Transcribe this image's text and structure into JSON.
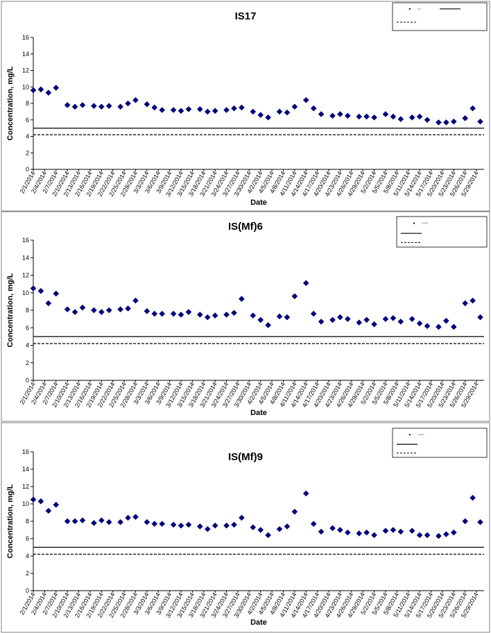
{
  "colors": {
    "marker": "#00007a",
    "line": "#000000",
    "frame": "#808080"
  },
  "chart_data": [
    {
      "type": "scatter",
      "title": "IS17",
      "xlabel": "Date",
      "ylabel": "Concentration, mg/L",
      "ylim": [
        0,
        16
      ],
      "yticks": [
        0,
        2,
        4,
        6,
        8,
        10,
        12,
        14,
        16
      ],
      "grid": false,
      "legend_position": "top-right",
      "x_tick_labels": [
        "2/1/2014",
        "2/4/2014",
        "2/7/2014",
        "2/10/2014",
        "2/13/2014",
        "2/16/2014",
        "2/19/2014",
        "2/22/2014",
        "2/25/2014",
        "2/28/2014",
        "3/3/2014",
        "3/6/2014",
        "3/9/2014",
        "3/12/2014",
        "3/15/2014",
        "3/18/2014",
        "3/21/2014",
        "3/24/2014",
        "3/27/2014",
        "3/30/2014",
        "4/2/2014",
        "4/5/2014",
        "4/8/2014",
        "4/11/2014",
        "4/14/2014",
        "4/17/2014",
        "4/20/2014",
        "4/23/2014",
        "4/26/2014",
        "4/29/2014",
        "5/2/2014",
        "5/5/2014",
        "5/8/2014",
        "5/11/2014",
        "5/14/2014",
        "5/17/2014",
        "5/20/2014",
        "5/23/2014",
        "5/26/2014",
        "5/29/2014"
      ],
      "series": [
        {
          "name": "IS17",
          "x": [
            "2/1/2014",
            "2/3/2014",
            "2/5/2014",
            "2/7/2014",
            "2/10/2014",
            "2/12/2014",
            "2/14/2014",
            "2/17/2014",
            "2/19/2014",
            "2/21/2014",
            "2/24/2014",
            "2/26/2014",
            "2/28/2014",
            "3/3/2014",
            "3/5/2014",
            "3/7/2014",
            "3/10/2014",
            "3/12/2014",
            "3/14/2014",
            "3/17/2014",
            "3/19/2014",
            "3/21/2014",
            "3/24/2014",
            "3/26/2014",
            "3/28/2014",
            "3/31/2014",
            "4/2/2014",
            "4/4/2014",
            "4/7/2014",
            "4/9/2014",
            "4/11/2014",
            "4/14/2014",
            "4/16/2014",
            "4/18/2014",
            "4/21/2014",
            "4/23/2014",
            "4/25/2014",
            "4/28/2014",
            "4/30/2014",
            "5/2/2014",
            "5/5/2014",
            "5/7/2014",
            "5/9/2014",
            "5/12/2014",
            "5/14/2014",
            "5/16/2014",
            "5/19/2014",
            "5/21/2014",
            "5/23/2014",
            "5/26/2014",
            "5/28/2014",
            "5/30/2014"
          ],
          "y": [
            9.6,
            9.7,
            9.3,
            9.9,
            7.8,
            7.6,
            7.8,
            7.7,
            7.6,
            7.7,
            7.6,
            8.0,
            8.4,
            7.9,
            7.5,
            7.2,
            7.2,
            7.1,
            7.3,
            7.3,
            7.0,
            7.1,
            7.2,
            7.4,
            7.5,
            7.0,
            6.6,
            6.3,
            7.0,
            6.9,
            7.6,
            8.4,
            7.4,
            6.7,
            6.5,
            6.7,
            6.5,
            6.4,
            6.4,
            6.3,
            6.7,
            6.4,
            6.1,
            6.3,
            6.4,
            6.0,
            5.7,
            5.7,
            5.8,
            6.2,
            7.4,
            5.8
          ]
        }
      ],
      "reference_lines": [
        {
          "y": 5.0,
          "style": "solid"
        },
        {
          "y": 4.2,
          "style": "dashed"
        }
      ]
    },
    {
      "type": "scatter",
      "title": "IS(Mf)6",
      "xlabel": "Date",
      "ylabel": "Concentration, mg/L",
      "ylim": [
        0,
        16
      ],
      "yticks": [
        0,
        2,
        4,
        6,
        8,
        10,
        12,
        14,
        16
      ],
      "grid": false,
      "legend_position": "top-right",
      "x_tick_labels": [
        "2/1/2014",
        "2/4/2014",
        "2/7/2014",
        "2/10/2014",
        "2/13/2014",
        "2/16/2014",
        "2/19/2014",
        "2/22/2014",
        "2/25/2014",
        "2/28/2014",
        "3/3/2014",
        "3/6/2014",
        "3/9/2014",
        "3/12/2014",
        "3/15/2014",
        "3/18/2014",
        "3/21/2014",
        "3/24/2014",
        "3/27/2014",
        "3/30/2014",
        "4/2/2014",
        "4/5/2014",
        "4/8/2014",
        "4/11/2014",
        "4/14/2014",
        "4/17/2014",
        "4/20/2014",
        "4/23/2014",
        "4/26/2014",
        "4/29/2014",
        "5/2/2014",
        "5/5/2014",
        "5/8/2014",
        "5/11/2014",
        "5/14/2014",
        "5/17/2014",
        "5/20/2014",
        "5/23/2014",
        "5/26/2014",
        "5/29/2014"
      ],
      "series": [
        {
          "name": "IS(Mf)6",
          "x": [
            "2/1/2014",
            "2/3/2014",
            "2/5/2014",
            "2/7/2014",
            "2/10/2014",
            "2/12/2014",
            "2/14/2014",
            "2/17/2014",
            "2/19/2014",
            "2/21/2014",
            "2/24/2014",
            "2/26/2014",
            "2/28/2014",
            "3/3/2014",
            "3/5/2014",
            "3/7/2014",
            "3/10/2014",
            "3/12/2014",
            "3/14/2014",
            "3/17/2014",
            "3/19/2014",
            "3/21/2014",
            "3/24/2014",
            "3/26/2014",
            "3/28/2014",
            "3/31/2014",
            "4/2/2014",
            "4/4/2014",
            "4/7/2014",
            "4/9/2014",
            "4/11/2014",
            "4/14/2014",
            "4/16/2014",
            "4/18/2014",
            "4/21/2014",
            "4/23/2014",
            "4/25/2014",
            "4/28/2014",
            "4/30/2014",
            "5/2/2014",
            "5/5/2014",
            "5/7/2014",
            "5/9/2014",
            "5/12/2014",
            "5/14/2014",
            "5/16/2014",
            "5/19/2014",
            "5/21/2014",
            "5/23/2014",
            "5/26/2014",
            "5/28/2014",
            "5/30/2014"
          ],
          "y": [
            10.5,
            10.2,
            8.8,
            9.9,
            8.1,
            7.8,
            8.3,
            8.0,
            7.8,
            8.0,
            8.1,
            8.2,
            9.1,
            7.9,
            7.6,
            7.6,
            7.6,
            7.5,
            7.8,
            7.5,
            7.2,
            7.4,
            7.5,
            7.7,
            9.3,
            7.4,
            6.9,
            6.3,
            7.3,
            7.2,
            9.6,
            11.1,
            7.6,
            6.7,
            6.9,
            7.2,
            7.0,
            6.6,
            6.9,
            6.4,
            7.0,
            7.1,
            6.7,
            7.0,
            6.5,
            6.2,
            6.1,
            6.8,
            6.1,
            8.8,
            9.1,
            7.2
          ]
        }
      ],
      "reference_lines": [
        {
          "y": 5.0,
          "style": "solid"
        },
        {
          "y": 4.2,
          "style": "dashed"
        }
      ]
    },
    {
      "type": "scatter",
      "title": "IS(Mf)9",
      "xlabel": "Date",
      "ylabel": "Concentration, mg/L",
      "ylim": [
        0,
        16
      ],
      "yticks": [
        0,
        2,
        4,
        6,
        8,
        10,
        12,
        14,
        16
      ],
      "grid": false,
      "legend_position": "top-right",
      "x_tick_labels": [
        "2/1/2014",
        "2/4/2014",
        "2/7/2014",
        "2/10/2014",
        "2/13/2014",
        "2/16/2014",
        "2/19/2014",
        "2/22/2014",
        "2/25/2014",
        "2/28/2014",
        "3/3/2014",
        "3/6/2014",
        "3/9/2014",
        "3/12/2014",
        "3/15/2014",
        "3/18/2014",
        "3/21/2014",
        "3/24/2014",
        "3/27/2014",
        "3/30/2014",
        "4/2/2014",
        "4/5/2014",
        "4/8/2014",
        "4/11/2014",
        "4/14/2014",
        "4/17/2014",
        "4/20/2014",
        "4/23/2014",
        "4/26/2014",
        "4/29/2014",
        "5/2/2014",
        "5/5/2014",
        "5/8/2014",
        "5/11/2014",
        "5/14/2014",
        "5/17/2014",
        "5/20/2014",
        "5/23/2014",
        "5/26/2014",
        "5/29/2014"
      ],
      "series": [
        {
          "name": "IS(Mf)9",
          "x": [
            "2/1/2014",
            "2/3/2014",
            "2/5/2014",
            "2/7/2014",
            "2/10/2014",
            "2/12/2014",
            "2/14/2014",
            "2/17/2014",
            "2/19/2014",
            "2/21/2014",
            "2/24/2014",
            "2/26/2014",
            "2/28/2014",
            "3/3/2014",
            "3/5/2014",
            "3/7/2014",
            "3/10/2014",
            "3/12/2014",
            "3/14/2014",
            "3/17/2014",
            "3/19/2014",
            "3/21/2014",
            "3/24/2014",
            "3/26/2014",
            "3/28/2014",
            "3/31/2014",
            "4/2/2014",
            "4/4/2014",
            "4/7/2014",
            "4/9/2014",
            "4/11/2014",
            "4/14/2014",
            "4/16/2014",
            "4/18/2014",
            "4/21/2014",
            "4/23/2014",
            "4/25/2014",
            "4/28/2014",
            "4/30/2014",
            "5/2/2014",
            "5/5/2014",
            "5/7/2014",
            "5/9/2014",
            "5/12/2014",
            "5/14/2014",
            "5/16/2014",
            "5/19/2014",
            "5/21/2014",
            "5/23/2014",
            "5/26/2014",
            "5/28/2014",
            "5/30/2014"
          ],
          "y": [
            10.5,
            10.3,
            9.2,
            9.9,
            8.0,
            8.0,
            8.1,
            7.8,
            8.1,
            7.9,
            7.9,
            8.4,
            8.5,
            7.9,
            7.7,
            7.7,
            7.6,
            7.5,
            7.6,
            7.4,
            7.1,
            7.5,
            7.5,
            7.6,
            8.4,
            7.3,
            7.0,
            6.4,
            7.1,
            7.4,
            9.1,
            11.2,
            7.7,
            6.8,
            7.2,
            7.0,
            6.7,
            6.6,
            6.7,
            6.4,
            6.9,
            7.0,
            6.8,
            6.9,
            6.4,
            6.4,
            6.3,
            6.5,
            6.7,
            8.0,
            10.7,
            7.9
          ]
        }
      ],
      "reference_lines": [
        {
          "y": 5.0,
          "style": "solid"
        },
        {
          "y": 4.2,
          "style": "dashed"
        }
      ]
    }
  ]
}
